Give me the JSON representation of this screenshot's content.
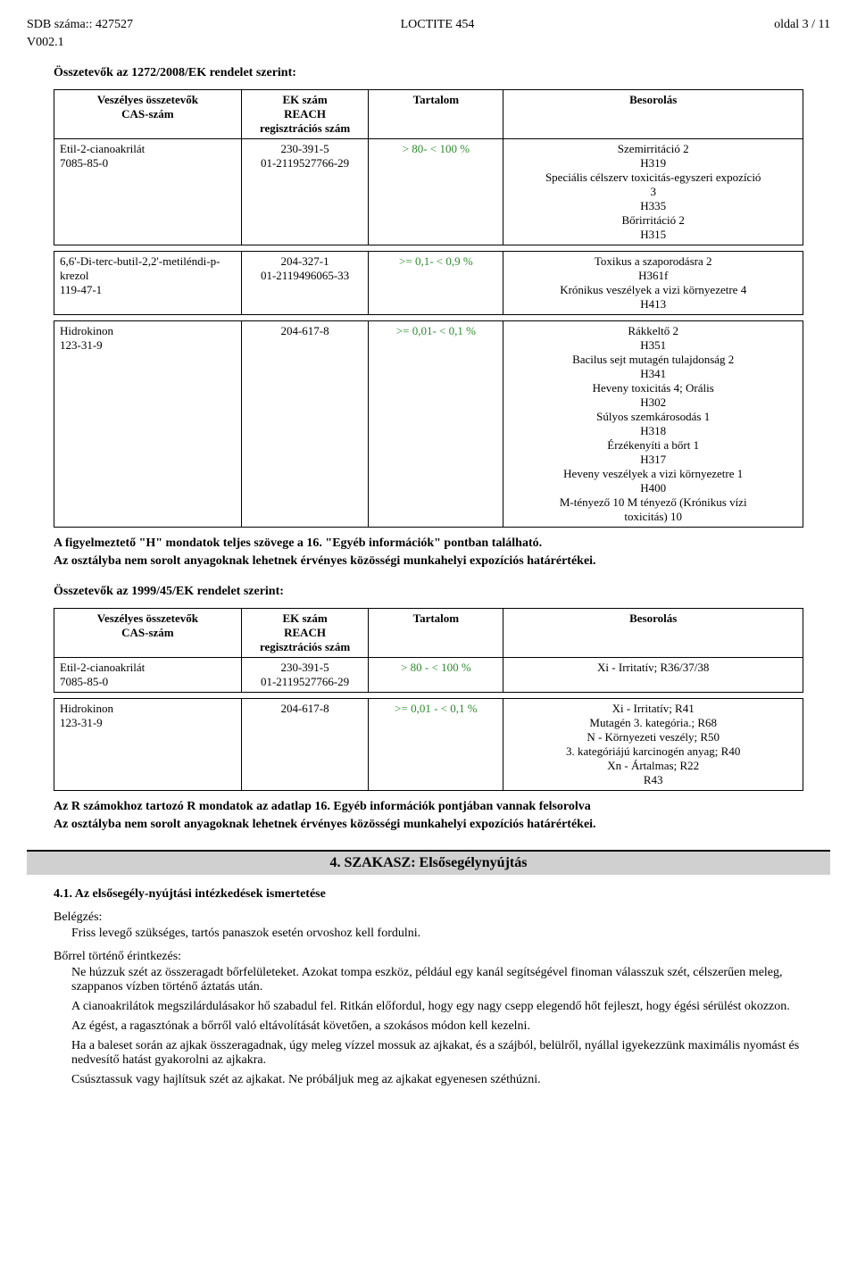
{
  "header": {
    "sdb_label": "SDB száma::",
    "sdb_num": "427527",
    "product": "LOCTITE 454",
    "page": "oldal 3 / 11",
    "version": "V002.1"
  },
  "sec1272": {
    "title": "Összetevők az 1272/2008/EK rendelet szerint:",
    "headers": {
      "c1a": "Veszélyes összetevők",
      "c1b": "CAS-szám",
      "c2a": "EK szám",
      "c2b": "REACH",
      "c2c": "regisztrációs szám",
      "c3": "Tartalom",
      "c4": "Besorolás"
    },
    "rows": [
      {
        "name1": "Etil-2-cianoakrilát",
        "name2": "7085-85-0",
        "ek1": "230-391-5",
        "ek2": "01-2119527766-29",
        "tart": ">  80- < 100 %",
        "bes": "Szemirritáció 2\nH319\nSpeciális célszerv toxicitás-egyszeri expozíció\n3\nH335\nBőrirritáció 2\nH315"
      },
      {
        "name1": "6,6'-Di-terc-butil-2,2'-metiléndi-p-krezol",
        "name2": "119-47-1",
        "ek1": "204-327-1",
        "ek2": "01-2119496065-33",
        "tart": ">=   0,1- <   0,9 %",
        "bes": "Toxikus a szaporodásra 2\nH361f\nKrónikus veszélyek a vizi környezetre 4\nH413"
      },
      {
        "name1": "Hidrokinon",
        "name2": "123-31-9",
        "ek1": "204-617-8",
        "ek2": "",
        "tart": ">=   0,01- <   0,1 %",
        "bes": "Rákkeltő 2\nH351\nBacilus sejt mutagén tulajdonság 2\nH341\nHeveny toxicitás 4;  Orális\nH302\nSúlyos szemkárosodás 1\nH318\nÉrzékenyíti a bőrt 1\nH317\nHeveny veszélyek a vizi környezetre 1\nH400\nM-tényező 10 M tényező (Krónikus vízi\ntoxicitás) 10"
      }
    ]
  },
  "note_h1": "A figyelmeztető \"H\" mondatok teljes szövege a 16. \"Egyéb információk\" pontban található.",
  "note_h2": "Az osztályba nem sorolt anyagoknak lehetnek érvényes közösségi munkahelyi expozíciós határértékei.",
  "sec1999": {
    "title": "Összetevők az 1999/45/EK rendelet szerint:",
    "headers": {
      "c1a": "Veszélyes összetevők",
      "c1b": "CAS-szám",
      "c2a": "EK szám",
      "c2b": "REACH",
      "c2c": "regisztrációs szám",
      "c3": "Tartalom",
      "c4": "Besorolás"
    },
    "rows": [
      {
        "name1": "Etil-2-cianoakrilát",
        "name2": "7085-85-0",
        "ek1": "230-391-5",
        "ek2": "01-2119527766-29",
        "tart": ">  80 - < 100  %",
        "bes": "Xi - Irritatív;  R36/37/38"
      },
      {
        "name1": "Hidrokinon",
        "name2": "123-31-9",
        "ek1": "204-617-8",
        "ek2": "",
        "tart": ">=   0,01 - <   0,1 %",
        "bes": "Xi - Irritatív;  R41\nMutagén 3. kategória.;  R68\nN - Környezeti veszély;  R50\n3. kategóriájú karcinogén anyag;  R40\nXn - Ártalmas;  R22\nR43"
      }
    ]
  },
  "note_r1": "Az R számokhoz tartozó R mondatok az adatlap 16. Egyéb információk pontjában vannak felsorolva",
  "note_r2": "Az osztályba nem sorolt anyagoknak lehetnek érvényes közösségi munkahelyi expozíciós határértékei.",
  "szakasz4": {
    "bar": "4. SZAKASZ: Elsősegélynyújtás",
    "h41": "4.1. Az elsősegély-nyújtási intézkedések ismertetése",
    "inhale_label": "Belégzés:",
    "inhale_body": "Friss levegő szükséges, tartós panaszok esetén orvoshoz kell fordulni.",
    "skin_label": "Bőrrel történő érintkezés:",
    "skin_body1": "Ne húzzuk szét az összeragadt bőrfelületeket. Azokat tompa eszköz, például egy kanál segítségével finoman válasszuk szét, célszerűen meleg, szappanos vízben történő áztatás után.",
    "skin_body2": "A cianoakrilátok megszilárdulásakor hő szabadul fel. Ritkán előfordul, hogy egy nagy csepp elegendő hőt fejleszt, hogy égési sérülést okozzon.",
    "skin_body3": "Az égést, a ragasztónak a bőrről való eltávolítását követően, a szokásos módon kell kezelni.",
    "skin_body4": "Ha a baleset során az ajkak összeragadnak, úgy meleg vízzel mossuk az ajkakat, és a szájból, belülről, nyállal igyekezzünk maximális nyomást és nedvesítő hatást gyakorolni az ajkakra.",
    "skin_body5": "Csúsztassuk vagy hajlítsuk szét az ajkakat. Ne próbáljuk meg az ajkakat egyenesen széthúzni."
  }
}
